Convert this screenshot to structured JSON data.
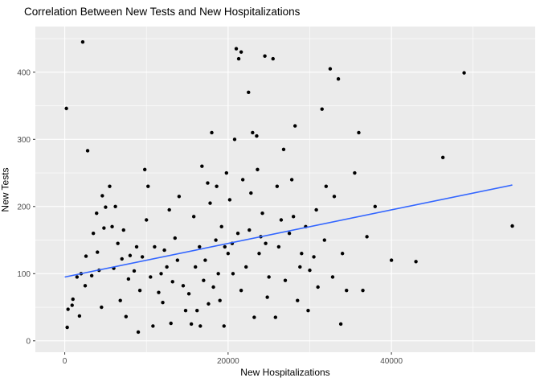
{
  "chart_data": {
    "type": "scatter",
    "title": "Correlation Between New Tests and New Hospitalizations",
    "xlabel": "New Hospitalizations",
    "ylabel": "New Tests",
    "xlim": [
      -3600,
      57600
    ],
    "ylim": [
      -17,
      468
    ],
    "xticks": [
      0,
      20000,
      40000
    ],
    "xtick_labels": [
      "0",
      "20000",
      "40000"
    ],
    "yticks": [
      0,
      100,
      200,
      300,
      400
    ],
    "ytick_labels": [
      "0",
      "100",
      "200",
      "300",
      "400"
    ],
    "x_minor": [
      10000,
      30000,
      50000
    ],
    "y_minor": [
      50,
      150,
      250,
      350,
      450
    ],
    "grid": "on",
    "legend": "none",
    "points": [
      [
        200,
        346
      ],
      [
        300,
        20
      ],
      [
        900,
        53
      ],
      [
        400,
        47
      ],
      [
        1500,
        95
      ],
      [
        2000,
        100
      ],
      [
        2500,
        82
      ],
      [
        2200,
        445
      ],
      [
        2800,
        283
      ],
      [
        3500,
        160
      ],
      [
        4000,
        132
      ],
      [
        4200,
        105
      ],
      [
        4500,
        50
      ],
      [
        1000,
        62
      ],
      [
        1800,
        37
      ],
      [
        4800,
        168
      ],
      [
        3300,
        97
      ],
      [
        2600,
        126
      ],
      [
        5000,
        199
      ],
      [
        4600,
        216
      ],
      [
        3900,
        190
      ],
      [
        5500,
        230
      ],
      [
        6000,
        108
      ],
      [
        6500,
        145
      ],
      [
        7000,
        122
      ],
      [
        7500,
        36
      ],
      [
        8000,
        127
      ],
      [
        8500,
        104
      ],
      [
        9000,
        13
      ],
      [
        9500,
        125
      ],
      [
        10000,
        180
      ],
      [
        10500,
        95
      ],
      [
        11000,
        140
      ],
      [
        11500,
        72
      ],
      [
        12000,
        57
      ],
      [
        12500,
        110
      ],
      [
        13000,
        26
      ],
      [
        13500,
        153
      ],
      [
        14000,
        215
      ],
      [
        14500,
        82
      ],
      [
        9800,
        255
      ],
      [
        10200,
        230
      ],
      [
        12800,
        195
      ],
      [
        13800,
        120
      ],
      [
        7800,
        92
      ],
      [
        6800,
        60
      ],
      [
        5800,
        170
      ],
      [
        8800,
        140
      ],
      [
        11800,
        100
      ],
      [
        14800,
        45
      ],
      [
        9200,
        75
      ],
      [
        10800,
        22
      ],
      [
        12200,
        135
      ],
      [
        13200,
        88
      ],
      [
        6200,
        200
      ],
      [
        7200,
        165
      ],
      [
        15500,
        25
      ],
      [
        16000,
        110
      ],
      [
        16500,
        140
      ],
      [
        17000,
        90
      ],
      [
        17500,
        235
      ],
      [
        18000,
        310
      ],
      [
        18500,
        150
      ],
      [
        19000,
        60
      ],
      [
        19500,
        22
      ],
      [
        20000,
        130
      ],
      [
        20500,
        145
      ],
      [
        21000,
        435
      ],
      [
        21300,
        420
      ],
      [
        21600,
        430
      ],
      [
        22500,
        370
      ],
      [
        23000,
        310
      ],
      [
        23500,
        305
      ],
      [
        24000,
        155
      ],
      [
        24500,
        424
      ],
      [
        25000,
        95
      ],
      [
        15800,
        185
      ],
      [
        16800,
        260
      ],
      [
        17800,
        205
      ],
      [
        18800,
        100
      ],
      [
        19800,
        250
      ],
      [
        20800,
        300
      ],
      [
        21800,
        240
      ],
      [
        22800,
        220
      ],
      [
        23800,
        130
      ],
      [
        24800,
        65
      ],
      [
        16200,
        45
      ],
      [
        17200,
        120
      ],
      [
        18200,
        80
      ],
      [
        19200,
        170
      ],
      [
        20200,
        210
      ],
      [
        21200,
        160
      ],
      [
        22200,
        110
      ],
      [
        23200,
        35
      ],
      [
        24200,
        190
      ],
      [
        15200,
        70
      ],
      [
        16600,
        22
      ],
      [
        17600,
        55
      ],
      [
        18600,
        230
      ],
      [
        19600,
        140
      ],
      [
        20600,
        100
      ],
      [
        21600,
        75
      ],
      [
        22600,
        165
      ],
      [
        23600,
        255
      ],
      [
        24600,
        145
      ],
      [
        25500,
        420
      ],
      [
        26000,
        230
      ],
      [
        26500,
        180
      ],
      [
        27000,
        90
      ],
      [
        27500,
        160
      ],
      [
        28000,
        185
      ],
      [
        28500,
        60
      ],
      [
        29000,
        130
      ],
      [
        29500,
        170
      ],
      [
        30000,
        105
      ],
      [
        30500,
        125
      ],
      [
        31000,
        80
      ],
      [
        31500,
        345
      ],
      [
        32000,
        230
      ],
      [
        32500,
        405
      ],
      [
        33000,
        215
      ],
      [
        33500,
        390
      ],
      [
        34000,
        130
      ],
      [
        34500,
        75
      ],
      [
        25800,
        35
      ],
      [
        26800,
        285
      ],
      [
        27800,
        240
      ],
      [
        28800,
        110
      ],
      [
        29800,
        45
      ],
      [
        30800,
        195
      ],
      [
        31800,
        150
      ],
      [
        32800,
        95
      ],
      [
        33800,
        25
      ],
      [
        26200,
        140
      ],
      [
        28200,
        320
      ],
      [
        35500,
        250
      ],
      [
        36000,
        310
      ],
      [
        36500,
        75
      ],
      [
        37000,
        155
      ],
      [
        38000,
        200
      ],
      [
        40000,
        120
      ],
      [
        43000,
        118
      ],
      [
        46300,
        273
      ],
      [
        48900,
        399
      ],
      [
        54800,
        171
      ]
    ],
    "trend_line": {
      "type": "linear",
      "points": [
        [
          0,
          95
        ],
        [
          54800,
          232
        ]
      ]
    },
    "colors": {
      "panel": "#EBEBEB",
      "grid": "#FFFFFF",
      "point": "#000000",
      "trend": "#3366FF",
      "tick_text": "#4D4D4D",
      "tick_mark": "#333333"
    }
  }
}
